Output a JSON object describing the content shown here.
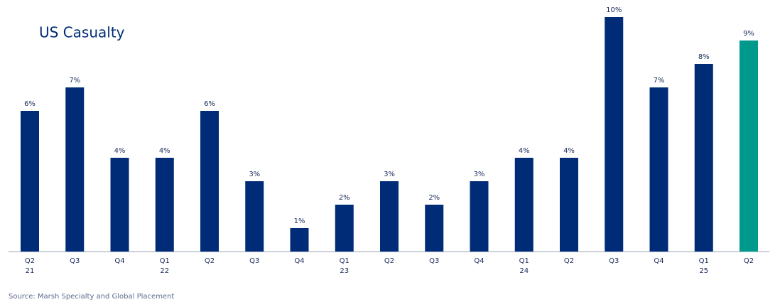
{
  "chart_data": {
    "type": "bar",
    "title": "US Casualty",
    "categories": [
      "Q2",
      "Q3",
      "Q4",
      "Q1",
      "Q2",
      "Q3",
      "Q4",
      "Q1",
      "Q2",
      "Q3",
      "Q4",
      "Q1",
      "Q2",
      "Q3",
      "Q4",
      "Q1",
      "Q2"
    ],
    "category_years": [
      "21",
      null,
      null,
      "22",
      null,
      null,
      null,
      "23",
      null,
      null,
      null,
      "24",
      null,
      null,
      null,
      "25",
      null
    ],
    "values": [
      6,
      7,
      4,
      4,
      6,
      3,
      1,
      2,
      3,
      2,
      3,
      4,
      4,
      10,
      7,
      8,
      9
    ],
    "value_labels": [
      "6%",
      "7%",
      "4%",
      "4%",
      "6%",
      "3%",
      "1%",
      "2%",
      "3%",
      "2%",
      "3%",
      "4%",
      "4%",
      "10%",
      "7%",
      "8%",
      "9%"
    ],
    "colors": [
      "#002c77",
      "#002c77",
      "#002c77",
      "#002c77",
      "#002c77",
      "#002c77",
      "#002c77",
      "#002c77",
      "#002c77",
      "#002c77",
      "#002c77",
      "#002c77",
      "#002c77",
      "#002c77",
      "#002c77",
      "#002c77",
      "#009a8c"
    ],
    "ylim": [
      0,
      10
    ],
    "source": "Source: Marsh Specialty and Global Placement"
  }
}
